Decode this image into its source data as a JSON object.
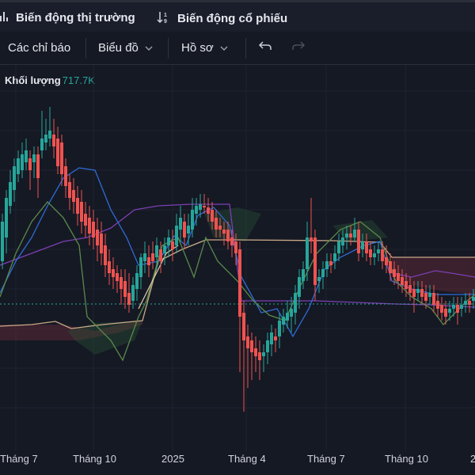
{
  "tabs": [
    {
      "label": "Biến động thị trường",
      "icon": "chart-lines-icon"
    },
    {
      "label": "Biến động cổ phiếu",
      "icon": "sort-numeric-icon"
    }
  ],
  "toolbar": {
    "indicators": "Các chỉ báo",
    "chart": "Biểu đồ",
    "profile": "Hồ sơ"
  },
  "legend": {
    "label": "Khối lượng",
    "value": "717.7K"
  },
  "xaxis": {
    "ticks": [
      "Tháng 7",
      "Tháng 10",
      "2025",
      "Tháng 4",
      "Tháng 7",
      "Tháng 10",
      "2"
    ]
  },
  "colors": {
    "up": "#26a69a",
    "down": "#ef5350",
    "ma_blue": "#2f6bd6",
    "ma_purple": "#7b3fb3",
    "ma_green": "#5a8a4a",
    "ma_tan": "#c9a987"
  }
}
